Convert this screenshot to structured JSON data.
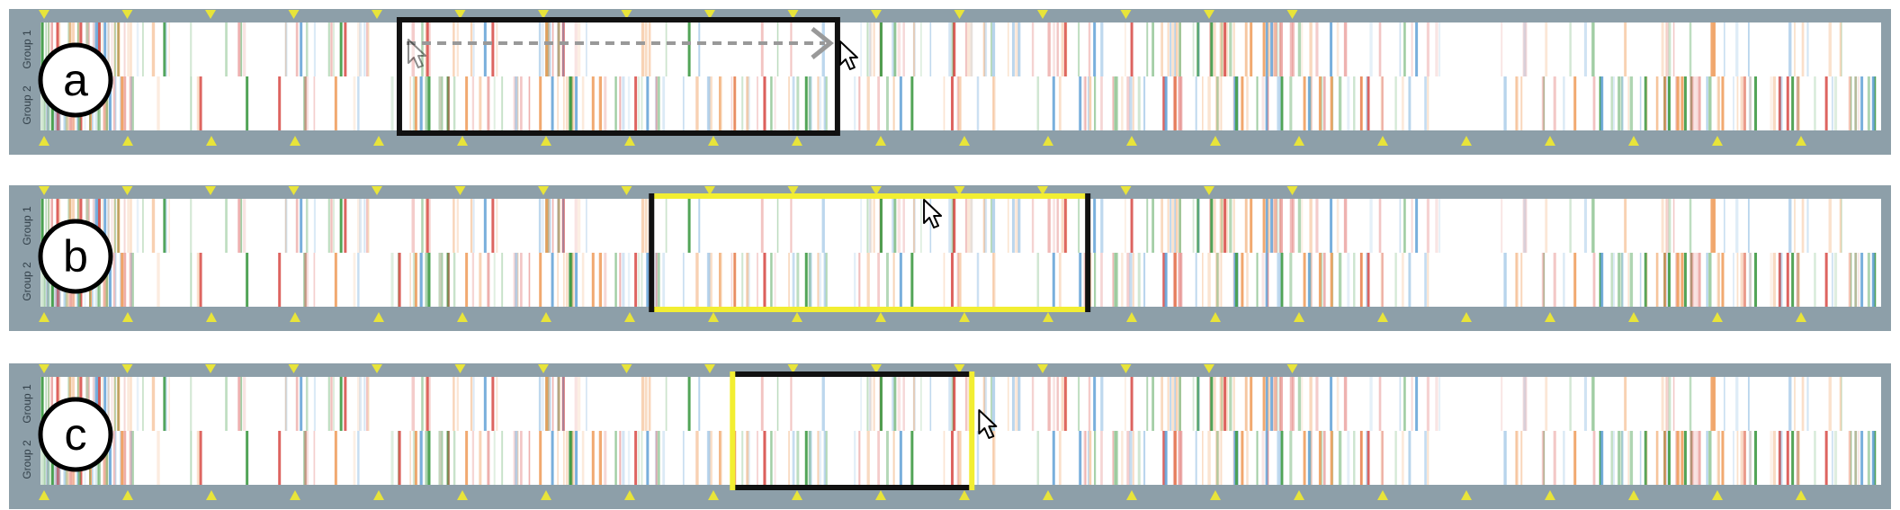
{
  "panels": [
    {
      "label": "a",
      "group_labels": [
        "Group 1",
        "Group 2"
      ],
      "selection": {
        "start_fraction": 0.195,
        "end_fraction": 0.433,
        "style": "black box",
        "drag_arrow": true
      },
      "cursor": {
        "state": "drag",
        "position_fraction": 0.433
      }
    },
    {
      "label": "b",
      "group_labels": [
        "Group 1",
        "Group 2"
      ],
      "selection": {
        "start_fraction": 0.332,
        "end_fraction": 0.569,
        "style": "yellow top/bottom, black sides"
      },
      "cursor": {
        "state": "move",
        "position_fraction": 0.48
      }
    },
    {
      "label": "c",
      "group_labels": [
        "Group 1",
        "Group 2"
      ],
      "selection": {
        "start_fraction": 0.376,
        "end_fraction": 0.506,
        "style": "black top/bottom, yellow sides"
      },
      "cursor": {
        "state": "resize",
        "position_fraction": 0.508
      }
    }
  ],
  "colors": {
    "frame": "#8d9fa9",
    "track": "#ffffff",
    "marker": "#e8e43a",
    "red": "#d9534f",
    "green": "#3f9a45",
    "blue": "#6aa6d8",
    "orange": "#f0a060",
    "selection_black": "#111111",
    "selection_yellow": "#f2ee32"
  }
}
